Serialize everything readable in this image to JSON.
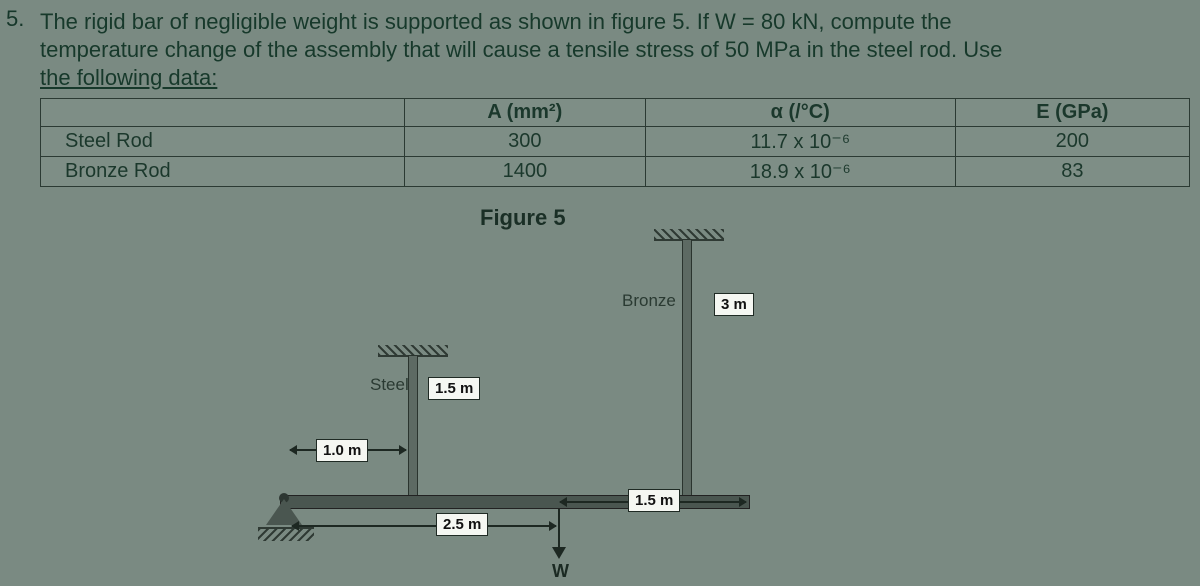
{
  "question": {
    "number": "5.",
    "line1": "The rigid bar of negligible weight is supported as shown in figure 5. If W = 80 kN, compute the",
    "line2": "temperature change of the assembly that will cause a tensile stress of 50 MPa in the steel rod. Use",
    "line3": "the following data:"
  },
  "table": {
    "headers": {
      "col1": "",
      "col2": "A (mm²)",
      "col3": "α (/°C)",
      "col4": "E (GPa)"
    },
    "rows": [
      {
        "name": "Steel Rod",
        "area": "300",
        "alpha": "11.7 x 10⁻⁶",
        "E": "200"
      },
      {
        "name": "Bronze Rod",
        "area": "1400",
        "alpha": "18.9 x 10⁻⁶",
        "E": "83"
      }
    ]
  },
  "figure": {
    "title": "Figure 5",
    "steel_label": "Steel",
    "bronze_label": "Bronze",
    "steel_length": "1.5 m",
    "bronze_length": "3 m",
    "dim_left": "1.0 m",
    "dim_mid": "2.5 m",
    "dim_right": "1.5 m",
    "load_label": "W"
  },
  "style": {
    "bg": "#7a8a82",
    "text": "#17392b",
    "dim_box_bg": "#f5f7f2"
  }
}
